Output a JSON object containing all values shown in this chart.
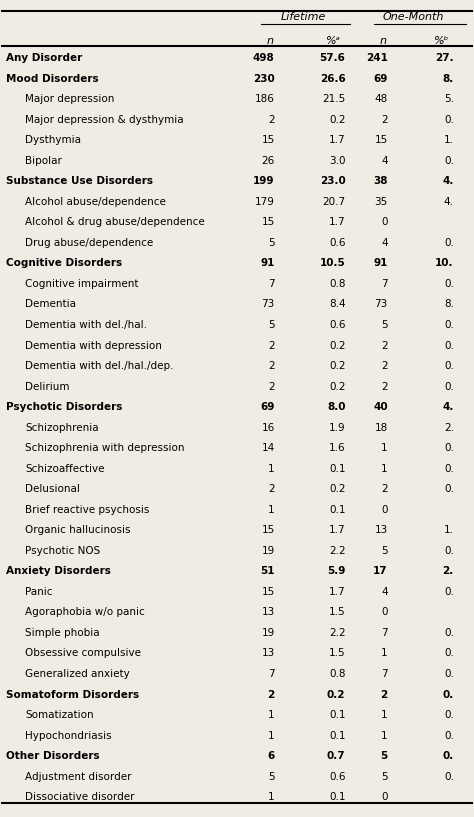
{
  "title": "",
  "headers": [
    "",
    "n",
    "%ᵃ",
    "n",
    "%ᵇ"
  ],
  "col_group_1": "Lifetime",
  "col_group_2": "One-Month",
  "rows": [
    {
      "label": "Any Disorder",
      "indent": 0,
      "bold": true,
      "lt_n": "498",
      "lt_pct": "57.6",
      "om_n": "241",
      "om_pct": "27."
    },
    {
      "label": "Mood Disorders",
      "indent": 0,
      "bold": true,
      "lt_n": "230",
      "lt_pct": "26.6",
      "om_n": "69",
      "om_pct": "8."
    },
    {
      "label": "Major depression",
      "indent": 1,
      "bold": false,
      "lt_n": "186",
      "lt_pct": "21.5",
      "om_n": "48",
      "om_pct": "5."
    },
    {
      "label": "Major depression & dysthymia",
      "indent": 1,
      "bold": false,
      "lt_n": "2",
      "lt_pct": "0.2",
      "om_n": "2",
      "om_pct": "0."
    },
    {
      "label": "Dysthymia",
      "indent": 1,
      "bold": false,
      "lt_n": "15",
      "lt_pct": "1.7",
      "om_n": "15",
      "om_pct": "1."
    },
    {
      "label": "Bipolar",
      "indent": 1,
      "bold": false,
      "lt_n": "26",
      "lt_pct": "3.0",
      "om_n": "4",
      "om_pct": "0."
    },
    {
      "label": "Substance Use Disorders",
      "indent": 0,
      "bold": true,
      "lt_n": "199",
      "lt_pct": "23.0",
      "om_n": "38",
      "om_pct": "4."
    },
    {
      "label": "Alcohol abuse/dependence",
      "indent": 1,
      "bold": false,
      "lt_n": "179",
      "lt_pct": "20.7",
      "om_n": "35",
      "om_pct": "4."
    },
    {
      "label": "Alcohol & drug abuse/dependence",
      "indent": 1,
      "bold": false,
      "lt_n": "15",
      "lt_pct": "1.7",
      "om_n": "0",
      "om_pct": ""
    },
    {
      "label": "Drug abuse/dependence",
      "indent": 1,
      "bold": false,
      "lt_n": "5",
      "lt_pct": "0.6",
      "om_n": "4",
      "om_pct": "0."
    },
    {
      "label": "Cognitive Disorders",
      "indent": 0,
      "bold": true,
      "lt_n": "91",
      "lt_pct": "10.5",
      "om_n": "91",
      "om_pct": "10."
    },
    {
      "label": "Cognitive impairment",
      "indent": 1,
      "bold": false,
      "lt_n": "7",
      "lt_pct": "0.8",
      "om_n": "7",
      "om_pct": "0."
    },
    {
      "label": "Dementia",
      "indent": 1,
      "bold": false,
      "lt_n": "73",
      "lt_pct": "8.4",
      "om_n": "73",
      "om_pct": "8."
    },
    {
      "label": "Dementia with del./hal.",
      "indent": 1,
      "bold": false,
      "lt_n": "5",
      "lt_pct": "0.6",
      "om_n": "5",
      "om_pct": "0."
    },
    {
      "label": "Dementia with depression",
      "indent": 1,
      "bold": false,
      "lt_n": "2",
      "lt_pct": "0.2",
      "om_n": "2",
      "om_pct": "0."
    },
    {
      "label": "Dementia with del./hal./dep.",
      "indent": 1,
      "bold": false,
      "lt_n": "2",
      "lt_pct": "0.2",
      "om_n": "2",
      "om_pct": "0."
    },
    {
      "label": "Delirium",
      "indent": 1,
      "bold": false,
      "lt_n": "2",
      "lt_pct": "0.2",
      "om_n": "2",
      "om_pct": "0."
    },
    {
      "label": "Psychotic Disorders",
      "indent": 0,
      "bold": true,
      "lt_n": "69",
      "lt_pct": "8.0",
      "om_n": "40",
      "om_pct": "4."
    },
    {
      "label": "Schizophrenia",
      "indent": 1,
      "bold": false,
      "lt_n": "16",
      "lt_pct": "1.9",
      "om_n": "18",
      "om_pct": "2."
    },
    {
      "label": "Schizophrenia with depression",
      "indent": 1,
      "bold": false,
      "lt_n": "14",
      "lt_pct": "1.6",
      "om_n": "1",
      "om_pct": "0."
    },
    {
      "label": "Schizoaffective",
      "indent": 1,
      "bold": false,
      "lt_n": "1",
      "lt_pct": "0.1",
      "om_n": "1",
      "om_pct": "0."
    },
    {
      "label": "Delusional",
      "indent": 1,
      "bold": false,
      "lt_n": "2",
      "lt_pct": "0.2",
      "om_n": "2",
      "om_pct": "0."
    },
    {
      "label": "Brief reactive psychosis",
      "indent": 1,
      "bold": false,
      "lt_n": "1",
      "lt_pct": "0.1",
      "om_n": "0",
      "om_pct": ""
    },
    {
      "label": "Organic hallucinosis",
      "indent": 1,
      "bold": false,
      "lt_n": "15",
      "lt_pct": "1.7",
      "om_n": "13",
      "om_pct": "1."
    },
    {
      "label": "Psychotic NOS",
      "indent": 1,
      "bold": false,
      "lt_n": "19",
      "lt_pct": "2.2",
      "om_n": "5",
      "om_pct": "0."
    },
    {
      "label": "Anxiety Disorders",
      "indent": 0,
      "bold": true,
      "lt_n": "51",
      "lt_pct": "5.9",
      "om_n": "17",
      "om_pct": "2."
    },
    {
      "label": "Panic",
      "indent": 1,
      "bold": false,
      "lt_n": "15",
      "lt_pct": "1.7",
      "om_n": "4",
      "om_pct": "0."
    },
    {
      "label": "Agoraphobia w/o panic",
      "indent": 1,
      "bold": false,
      "lt_n": "13",
      "lt_pct": "1.5",
      "om_n": "0",
      "om_pct": ""
    },
    {
      "label": "Simple phobia",
      "indent": 1,
      "bold": false,
      "lt_n": "19",
      "lt_pct": "2.2",
      "om_n": "7",
      "om_pct": "0."
    },
    {
      "label": "Obsessive compulsive",
      "indent": 1,
      "bold": false,
      "lt_n": "13",
      "lt_pct": "1.5",
      "om_n": "1",
      "om_pct": "0."
    },
    {
      "label": "Generalized anxiety",
      "indent": 1,
      "bold": false,
      "lt_n": "7",
      "lt_pct": "0.8",
      "om_n": "7",
      "om_pct": "0."
    },
    {
      "label": "Somatoform Disorders",
      "indent": 0,
      "bold": true,
      "lt_n": "2",
      "lt_pct": "0.2",
      "om_n": "2",
      "om_pct": "0."
    },
    {
      "label": "Somatization",
      "indent": 1,
      "bold": false,
      "lt_n": "1",
      "lt_pct": "0.1",
      "om_n": "1",
      "om_pct": "0."
    },
    {
      "label": "Hypochondriasis",
      "indent": 1,
      "bold": false,
      "lt_n": "1",
      "lt_pct": "0.1",
      "om_n": "1",
      "om_pct": "0."
    },
    {
      "label": "Other Disorders",
      "indent": 0,
      "bold": true,
      "lt_n": "6",
      "lt_pct": "0.7",
      "om_n": "5",
      "om_pct": "0."
    },
    {
      "label": "Adjustment disorder",
      "indent": 1,
      "bold": false,
      "lt_n": "5",
      "lt_pct": "0.6",
      "om_n": "5",
      "om_pct": "0."
    },
    {
      "label": "Dissociative disorder",
      "indent": 1,
      "bold": false,
      "lt_n": "1",
      "lt_pct": "0.1",
      "om_n": "0",
      "om_pct": ""
    }
  ],
  "bg_color": "#f0ece4",
  "text_color": "#000000",
  "fontsize": 7.5,
  "header_fontsize": 8.0
}
